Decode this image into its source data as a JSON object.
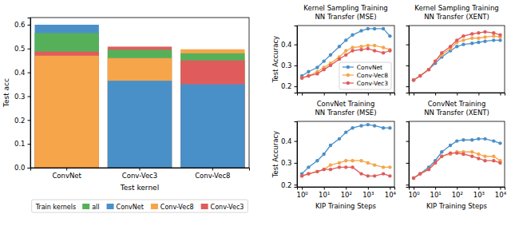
{
  "chart_data": [
    {
      "type": "bar",
      "stacked": false,
      "x_label": "Test kernel",
      "y_label": "Test acc",
      "categories": [
        "ConvNet",
        "Conv-Vec3",
        "Conv-Vec8"
      ],
      "ylim": [
        0,
        0.63
      ],
      "yticks": [
        {
          "value": 0,
          "label": "0.0"
        },
        0.1,
        0.2,
        0.3,
        0.4,
        0.5,
        0.6
      ],
      "legend": "bottom",
      "legend_title": "Train kernels",
      "series": [
        {
          "name": "all",
          "color": "#56b05a",
          "values": [
            0.565,
            0.495,
            0.48
          ]
        },
        {
          "name": "ConvNet",
          "color": "#4a90c8",
          "values": [
            0.6,
            0.365,
            0.35
          ]
        },
        {
          "name": "Conv-Vec8",
          "color": "#f6a54a",
          "values": [
            0.47,
            0.46,
            0.497
          ]
        },
        {
          "name": "Conv-Vec3",
          "color": "#e05c5c",
          "values": [
            0.487,
            0.508,
            0.45
          ]
        }
      ]
    },
    {
      "type": "line",
      "title": "Kernel Sampling Training\nNN Transfer (MSE)",
      "y_label": "Test Accuracy",
      "log": "x",
      "xlim": [
        0.6,
        16000
      ],
      "xticks": [
        {
          "value": 1,
          "label": "10⁰"
        },
        {
          "value": 10,
          "label": "10¹"
        },
        {
          "value": 100,
          "label": "10²"
        },
        {
          "value": 1000,
          "label": "10³"
        },
        {
          "value": 10000,
          "label": "10⁴"
        }
      ],
      "ylim": [
        0.17,
        0.49
      ],
      "yticks": [
        0.2,
        0.3,
        0.4
      ],
      "tick_labels": "y",
      "legend": "lower right",
      "x": [
        1,
        2,
        5,
        10,
        20,
        50,
        100,
        200,
        500,
        1000,
        2000,
        5000,
        10000
      ],
      "series": [
        {
          "name": "ConvNet",
          "color": "#4a90c8",
          "marker": "circle",
          "values": [
            0.25,
            0.27,
            0.29,
            0.32,
            0.35,
            0.39,
            0.42,
            0.445,
            0.465,
            0.475,
            0.475,
            0.475,
            0.44
          ]
        },
        {
          "name": "Conv-Vec8",
          "color": "#f6a54a",
          "marker": "circle",
          "values": [
            0.24,
            0.25,
            0.27,
            0.29,
            0.31,
            0.34,
            0.37,
            0.385,
            0.39,
            0.395,
            0.395,
            0.385,
            0.375
          ]
        },
        {
          "name": "Conv-Vec3",
          "color": "#e05c5c",
          "marker": "circle",
          "values": [
            0.24,
            0.25,
            0.26,
            0.28,
            0.3,
            0.33,
            0.35,
            0.37,
            0.375,
            0.38,
            0.37,
            0.36,
            0.37
          ]
        }
      ]
    },
    {
      "type": "line",
      "title": "Kernel Sampling Training\nNN Transfer (XENT)",
      "log": "x",
      "xlim": [
        0.6,
        16000
      ],
      "xticks": [
        {
          "value": 1,
          "label": "10⁰"
        },
        {
          "value": 10,
          "label": "10¹"
        },
        {
          "value": 100,
          "label": "10²"
        },
        {
          "value": 1000,
          "label": "10³"
        },
        {
          "value": 10000,
          "label": "10⁴"
        }
      ],
      "ylim": [
        0.17,
        0.49
      ],
      "yticks": [
        0.2,
        0.3,
        0.4
      ],
      "tick_labels": false,
      "x": [
        1,
        2,
        5,
        10,
        20,
        50,
        100,
        200,
        500,
        1000,
        2000,
        5000,
        10000
      ],
      "series": [
        {
          "name": "ConvNet",
          "color": "#4a90c8",
          "marker": "circle",
          "values": [
            0.23,
            0.25,
            0.28,
            0.31,
            0.34,
            0.37,
            0.39,
            0.4,
            0.405,
            0.41,
            0.415,
            0.42,
            0.42
          ]
        },
        {
          "name": "Conv-Vec8",
          "color": "#f6a54a",
          "marker": "circle",
          "values": [
            0.23,
            0.25,
            0.28,
            0.32,
            0.35,
            0.38,
            0.41,
            0.42,
            0.43,
            0.43,
            0.435,
            0.44,
            0.435
          ]
        },
        {
          "name": "Conv-Vec3",
          "color": "#e05c5c",
          "marker": "circle",
          "values": [
            0.23,
            0.25,
            0.28,
            0.32,
            0.36,
            0.39,
            0.42,
            0.44,
            0.45,
            0.455,
            0.46,
            0.455,
            0.445
          ]
        }
      ]
    },
    {
      "type": "line",
      "title": "ConvNet Training\nNN Transfer (MSE)",
      "y_label": "Test Accuracy",
      "x_label": "KIP Training Steps",
      "log": "x",
      "xlim": [
        0.6,
        16000
      ],
      "xticks": [
        {
          "value": 1,
          "label": "10⁰"
        },
        {
          "value": 10,
          "label": "10¹"
        },
        {
          "value": 100,
          "label": "10²"
        },
        {
          "value": 1000,
          "label": "10³"
        },
        {
          "value": 10000,
          "label": "10⁴"
        }
      ],
      "ylim": [
        0.19,
        0.49
      ],
      "yticks": [
        0.2,
        0.3,
        0.4
      ],
      "x": [
        1,
        2,
        5,
        10,
        20,
        50,
        100,
        200,
        500,
        1000,
        2000,
        5000,
        10000
      ],
      "series": [
        {
          "name": "ConvNet",
          "color": "#4a90c8",
          "marker": "circle",
          "values": [
            0.25,
            0.28,
            0.31,
            0.34,
            0.38,
            0.41,
            0.44,
            0.46,
            0.47,
            0.475,
            0.47,
            0.46,
            0.46
          ]
        },
        {
          "name": "Conv-Vec8",
          "color": "#f6a54a",
          "marker": "circle",
          "values": [
            0.24,
            0.25,
            0.26,
            0.27,
            0.29,
            0.3,
            0.31,
            0.31,
            0.31,
            0.3,
            0.29,
            0.28,
            0.28
          ]
        },
        {
          "name": "Conv-Vec3",
          "color": "#e05c5c",
          "marker": "circle",
          "values": [
            0.24,
            0.25,
            0.26,
            0.27,
            0.27,
            0.28,
            0.28,
            0.28,
            0.25,
            0.24,
            0.24,
            0.25,
            0.24
          ]
        }
      ]
    },
    {
      "type": "line",
      "title": "ConvNet Training\nNN Transfer (XENT)",
      "x_label": "KIP Training Steps",
      "log": "x",
      "xlim": [
        0.6,
        16000
      ],
      "xticks": [
        {
          "value": 1,
          "label": "10⁰"
        },
        {
          "value": 10,
          "label": "10¹"
        },
        {
          "value": 100,
          "label": "10²"
        },
        {
          "value": 1000,
          "label": "10³"
        },
        {
          "value": 10000,
          "label": "10⁴"
        }
      ],
      "ylim": [
        0.19,
        0.49
      ],
      "yticks": [
        0.2,
        0.3,
        0.4
      ],
      "tick_labels": "x",
      "x": [
        1,
        2,
        5,
        10,
        20,
        50,
        100,
        200,
        500,
        1000,
        2000,
        5000,
        10000
      ],
      "series": [
        {
          "name": "ConvNet",
          "color": "#4a90c8",
          "marker": "circle",
          "values": [
            0.23,
            0.25,
            0.28,
            0.31,
            0.35,
            0.38,
            0.4,
            0.405,
            0.405,
            0.41,
            0.41,
            0.4,
            0.39
          ]
        },
        {
          "name": "Conv-Vec8",
          "color": "#f6a54a",
          "marker": "circle",
          "values": [
            0.23,
            0.25,
            0.27,
            0.3,
            0.33,
            0.34,
            0.35,
            0.35,
            0.35,
            0.34,
            0.33,
            0.33,
            0.31
          ]
        },
        {
          "name": "Conv-Vec3",
          "color": "#e05c5c",
          "marker": "circle",
          "values": [
            0.23,
            0.25,
            0.27,
            0.3,
            0.33,
            0.345,
            0.345,
            0.34,
            0.33,
            0.32,
            0.31,
            0.31,
            0.3
          ]
        }
      ]
    }
  ]
}
